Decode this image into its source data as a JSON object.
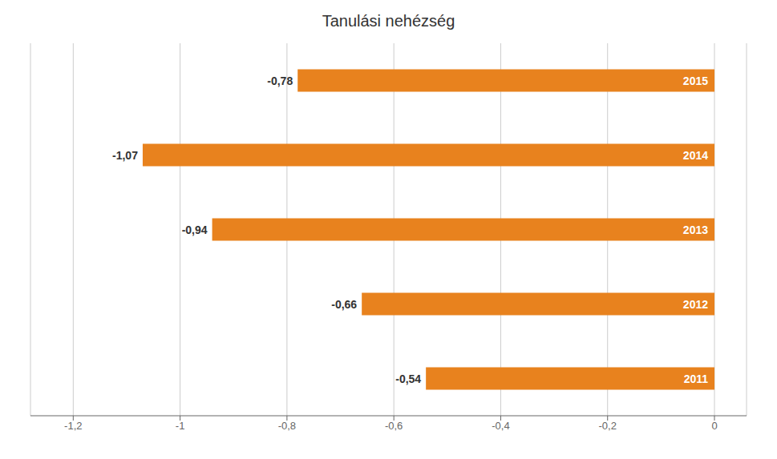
{
  "chart_data": {
    "type": "bar",
    "orientation": "horizontal",
    "title": "Tanulási nehézség",
    "categories": [
      "2015",
      "2014",
      "2013",
      "2012",
      "2011"
    ],
    "values": [
      -0.78,
      -1.07,
      -0.94,
      -0.66,
      -0.54
    ],
    "value_labels": [
      "-0,78",
      "-1,07",
      "-0,94",
      "-0,66",
      "-0,54"
    ],
    "data_labels": true,
    "color": "#E8821E",
    "xlim": [
      -1.28,
      0.06
    ],
    "xticks": [
      {
        "value": -1.2,
        "label": "-1,2"
      },
      -1,
      {
        "value": -0.8,
        "label": "-0,8"
      },
      {
        "value": -0.6,
        "label": "-0,6"
      },
      {
        "value": -0.4,
        "label": "-0,4"
      },
      {
        "value": -0.2,
        "label": "-0,2"
      },
      0
    ],
    "grid": true
  }
}
